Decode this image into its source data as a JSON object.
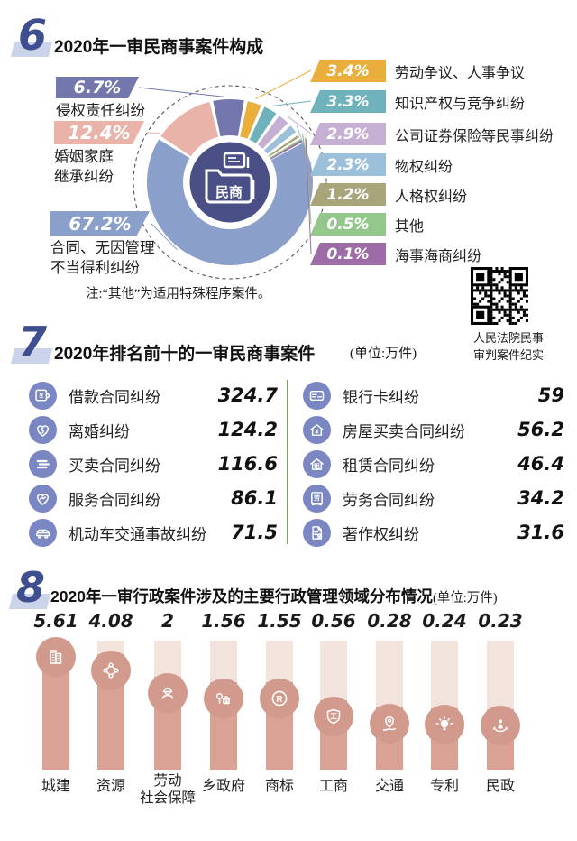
{
  "colors": {
    "accent": "#3e4e8e",
    "number_bg": "#cbd4ea",
    "icon_circle": "#7b87c3",
    "divider": "#83a65c",
    "bar_track": "#f3e3dd",
    "bar_fill": "#d9a294",
    "bar_circle": "#d29a8c"
  },
  "section6": {
    "number": "6",
    "title": "2020年一审民商事案件构成",
    "center_label": "民商",
    "note": "注:“其他”为适用特殊程序案件。",
    "left_labels": [
      {
        "pct": "6.7%",
        "line1": "侵权责任纠纷"
      },
      {
        "pct": "12.4%",
        "line1": "婚姻家庭",
        "line2": "继承纠纷"
      },
      {
        "pct": "67.2%",
        "line1": "合同、无因管理",
        "line2": "不当得利纠纷"
      }
    ],
    "right_labels": [
      {
        "pct": "3.4%",
        "name": "劳动争议、人事争议"
      },
      {
        "pct": "3.3%",
        "name": "知识产权与竞争纠纷"
      },
      {
        "pct": "2.9%",
        "name": "公司证券保险等民事纠纷"
      },
      {
        "pct": "2.3%",
        "name": "物权纠纷"
      },
      {
        "pct": "1.2%",
        "name": "人格权纠纷"
      },
      {
        "pct": "0.5%",
        "name": "其他"
      },
      {
        "pct": "0.1%",
        "name": "海事海商纠纷"
      }
    ]
  },
  "qr": {
    "caption_line1": "人民法院民事",
    "caption_line2": "审判案件纪实"
  },
  "section7": {
    "number": "7",
    "title": "2020年排名前十的一审民商事案件",
    "unit": "(单位:万件)"
  },
  "section8": {
    "number": "8",
    "title": "2020年一审行政案件涉及的主要行政管理领域分布情况",
    "unit": "(单位:万件)"
  },
  "chart_data": [
    {
      "type": "pie",
      "title": "2020年一审民商事案件构成",
      "labels": [
        "合同、无因管理不当得利纠纷",
        "婚姻家庭继承纠纷",
        "侵权责任纠纷",
        "劳动争议、人事争议",
        "知识产权与竞争纠纷",
        "公司证券保险等民事纠纷",
        "物权纠纷",
        "人格权纠纷",
        "其他",
        "海事海商纠纷"
      ],
      "values": [
        67.2,
        12.4,
        6.7,
        3.4,
        3.3,
        2.9,
        2.3,
        1.2,
        0.5,
        0.1
      ],
      "pct_labels": [
        "67.2%",
        "12.4%",
        "6.7%",
        "3.4%",
        "3.3%",
        "2.9%",
        "2.3%",
        "1.2%",
        "0.5%",
        "0.1%"
      ],
      "colors": [
        "#8b9fcb",
        "#e9b3a9",
        "#7377ae",
        "#eaae3d",
        "#6fb2bb",
        "#c5afd3",
        "#9cc0d9",
        "#a8a57a",
        "#93c78b",
        "#9d6ca7"
      ],
      "center_color": "#4a5086",
      "center_label": "民商",
      "note": "注:“其他”为适用特殊程序案件。"
    },
    {
      "type": "bar",
      "title": "2020年排名前十的一审民商事案件",
      "unit": "万件",
      "categories": [
        "借款合同纠纷",
        "离婚纠纷",
        "买卖合同纠纷",
        "服务合同纠纷",
        "机动车交通事故纠纷",
        "银行卡纠纷",
        "房屋买卖合同纠纷",
        "租赁合同纠纷",
        "劳务合同纠纷",
        "著作权纠纷"
      ],
      "values": [
        324.7,
        124.2,
        116.6,
        86.1,
        71.5,
        59,
        56.2,
        46.4,
        34.2,
        31.6
      ],
      "value_labels": [
        "324.7",
        "124.2",
        "116.6",
        "86.1",
        "71.5",
        "59",
        "56.2",
        "46.4",
        "34.2",
        "31.6"
      ]
    },
    {
      "type": "bar",
      "title": "2020年一审行政案件涉及的主要行政管理领域分布情况",
      "unit": "万件",
      "categories": [
        "城建",
        "资源",
        "劳动社会保障",
        "乡政府",
        "商标",
        "工商",
        "交通",
        "专利",
        "民政"
      ],
      "category_lines": [
        [
          "城建"
        ],
        [
          "资源"
        ],
        [
          "劳动",
          "社会保障"
        ],
        [
          "乡政府"
        ],
        [
          "商标"
        ],
        [
          "工商"
        ],
        [
          "交通"
        ],
        [
          "专利"
        ],
        [
          "民政"
        ]
      ],
      "values": [
        5.61,
        4.08,
        2,
        1.56,
        1.55,
        0.56,
        0.28,
        0.24,
        0.23
      ],
      "value_labels": [
        "5.61",
        "4.08",
        "2",
        "1.56",
        "1.55",
        "0.56",
        "0.28",
        "0.24",
        "0.23"
      ]
    }
  ]
}
